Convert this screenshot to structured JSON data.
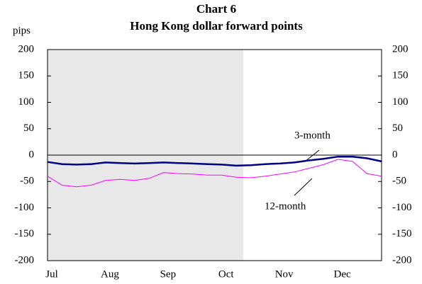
{
  "chart_data": {
    "type": "line",
    "title": "Chart 6",
    "subtitle": "Hong Kong dollar forward points",
    "y_label": "pips",
    "categories": [
      "Jul",
      null,
      null,
      null,
      "Aug",
      null,
      null,
      null,
      "Sep",
      null,
      null,
      null,
      "Oct",
      null,
      null,
      null,
      "Nov",
      null,
      null,
      null,
      "Dec",
      null,
      null,
      null
    ],
    "series": [
      {
        "name": "3-month",
        "color": "#000080",
        "values": [
          -13,
          -17,
          -18,
          -17,
          -14,
          -15,
          -16,
          -15,
          -14,
          -15,
          -16,
          -17,
          -18,
          -20,
          -19,
          -17,
          -16,
          -14,
          -10,
          -7,
          -3,
          -3,
          -6,
          -12
        ]
      },
      {
        "name": "12-month",
        "color": "#ff00ff",
        "values": [
          -40,
          -57,
          -60,
          -57,
          -48,
          -46,
          -48,
          -44,
          -33,
          -35,
          -36,
          -38,
          -38,
          -42,
          -43,
          -40,
          -36,
          -32,
          -25,
          -18,
          -8,
          -12,
          -35,
          -40
        ]
      }
    ],
    "ylim": [
      -200,
      200
    ],
    "yticks": [
      -200,
      -150,
      -100,
      -50,
      0,
      50,
      100,
      150,
      200
    ],
    "y2lim": [
      -200,
      200
    ],
    "y2ticks": [
      -200,
      -150,
      -100,
      -50,
      0,
      50,
      100,
      150,
      200
    ]
  }
}
